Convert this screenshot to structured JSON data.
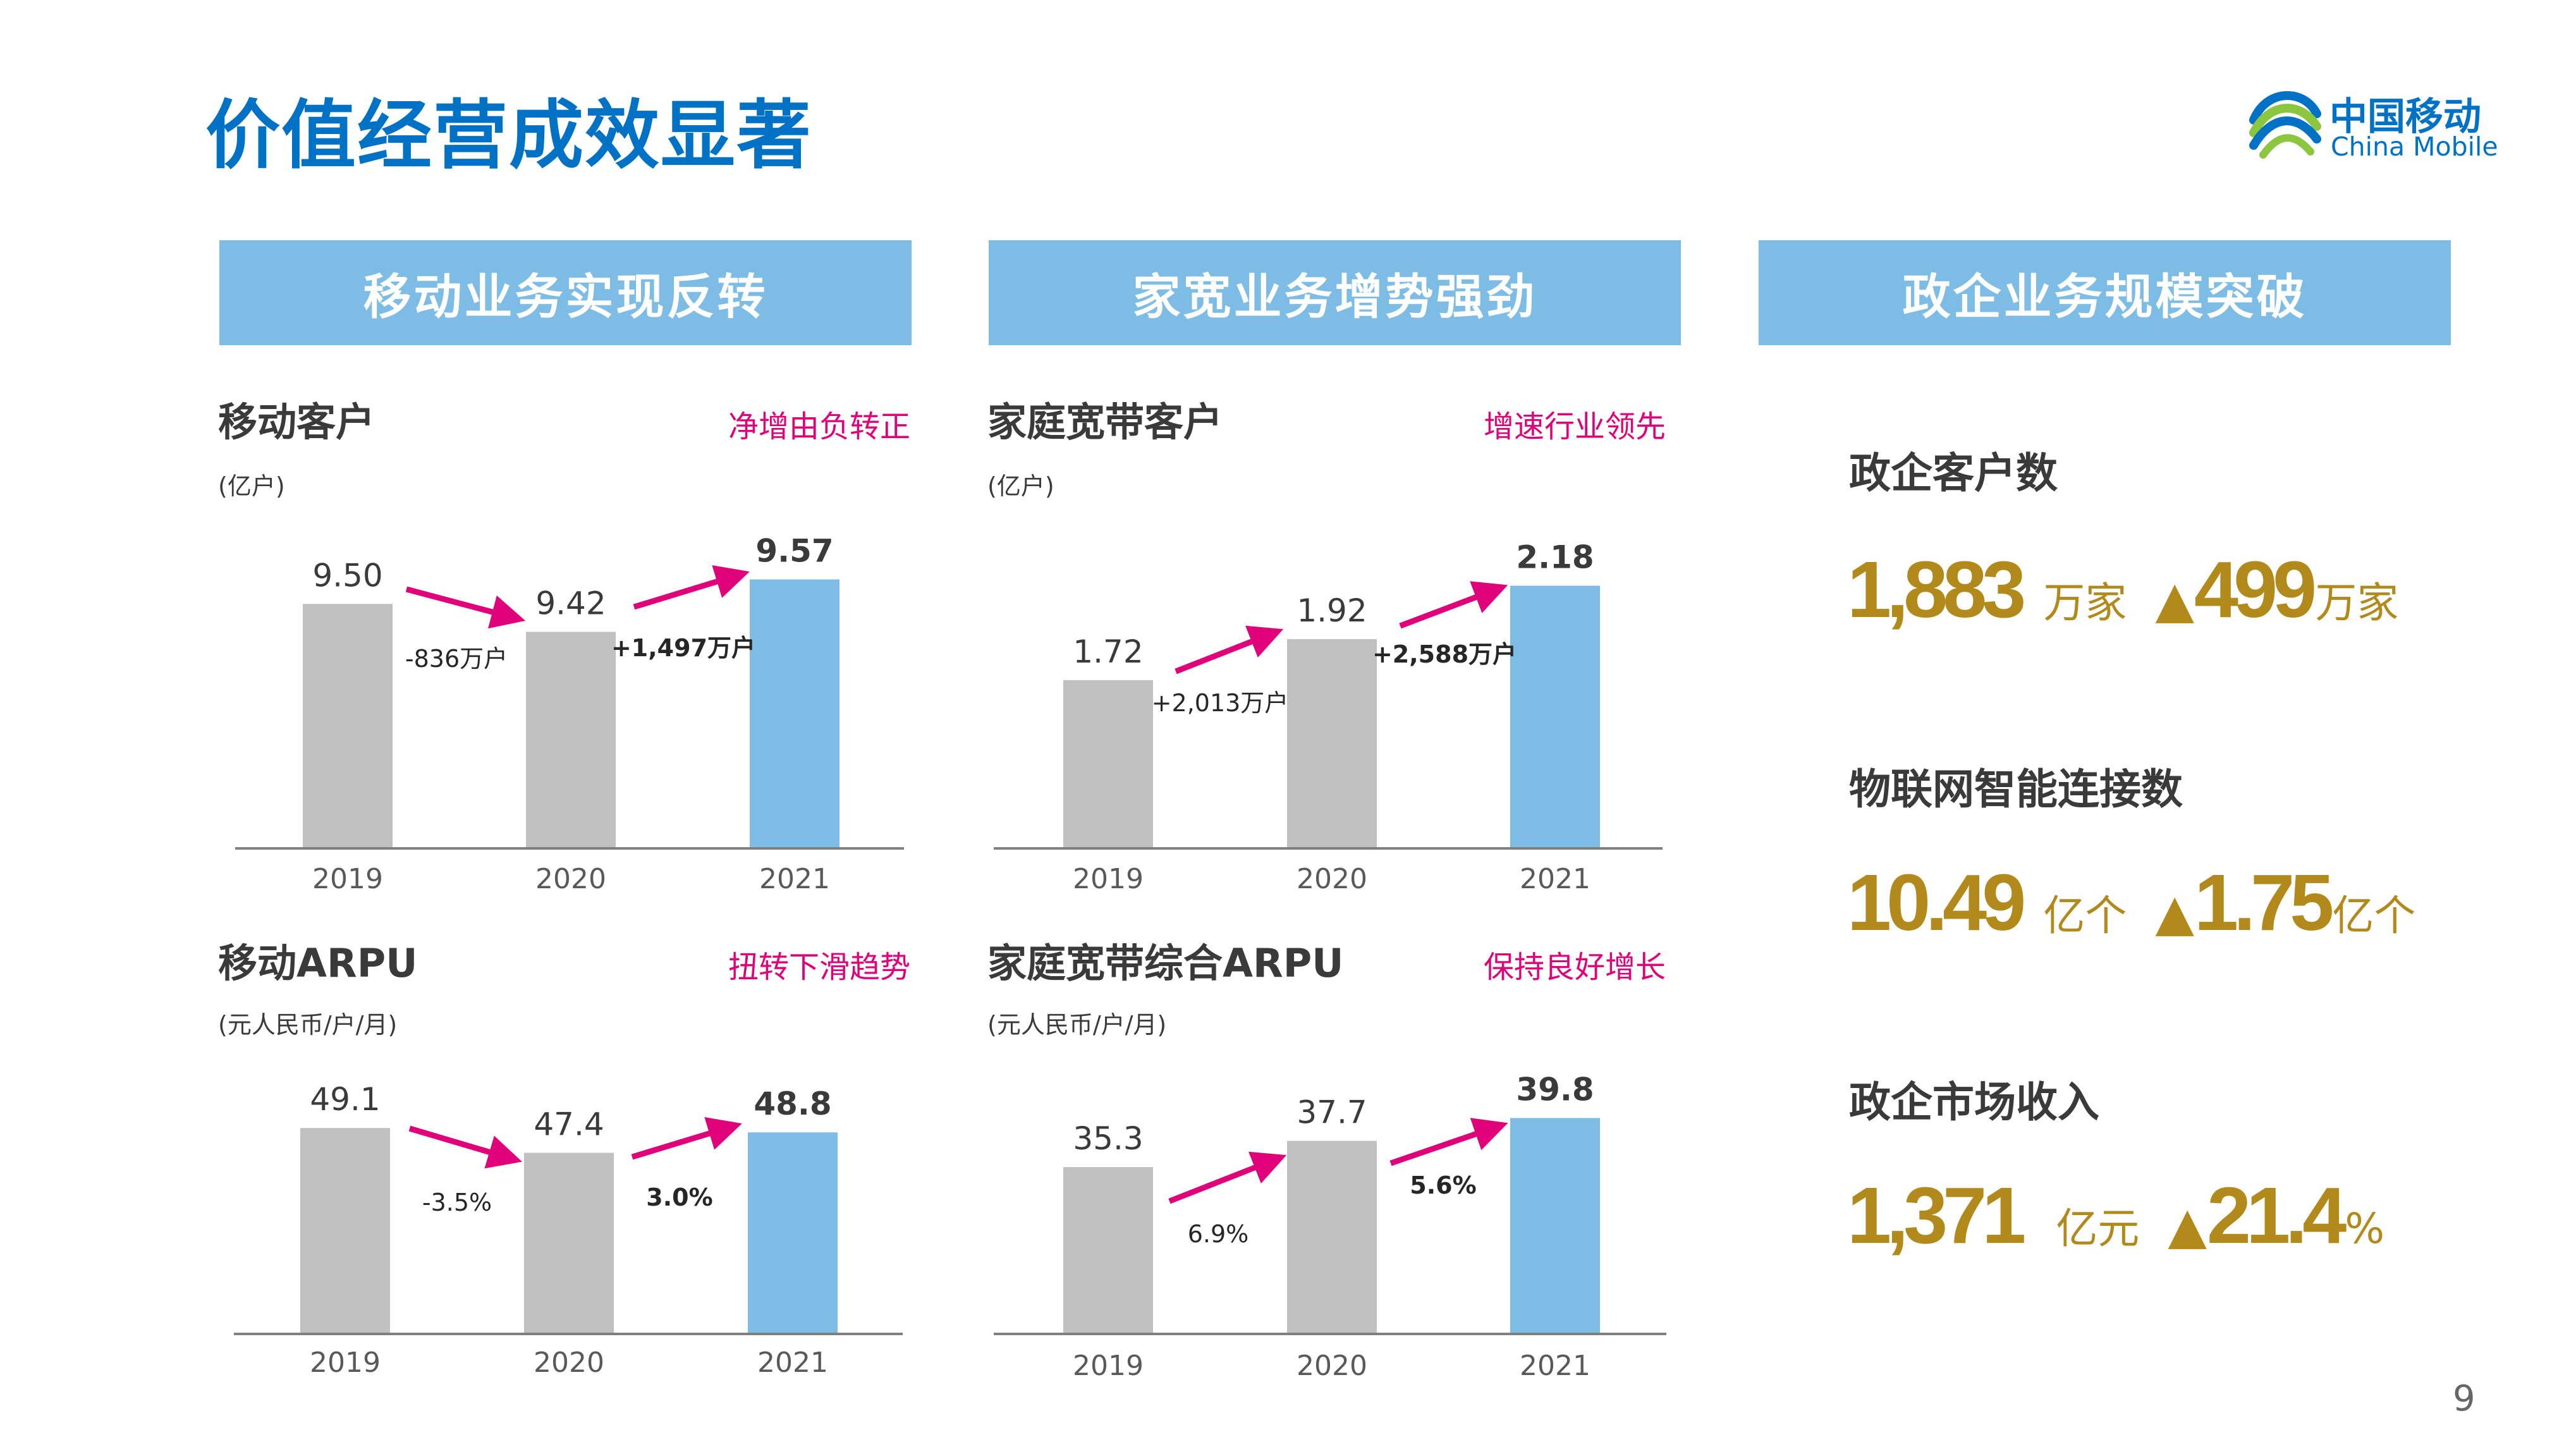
{
  "page": {
    "title": "价值经营成效显著",
    "number": "9"
  },
  "logo": {
    "cn": "中国移动",
    "en": "China Mobile"
  },
  "headers": [
    "移动业务实现反转",
    "家宽业务增势强劲",
    "政企业务规模突破"
  ],
  "colors": {
    "title": "#0072c6",
    "header_bg": "#7dbce4",
    "bar_gray": "#c0c0c0",
    "bar_blue": "#7dbce4",
    "arrow": "#e0007a",
    "note": "#e0007a",
    "gold": "#b28a1b"
  },
  "panels": [
    {
      "title": "移动客户",
      "unit": "(亿户)",
      "note": "净增由负转正",
      "value_labels": [
        "9.50",
        "9.42",
        "9.57"
      ],
      "change_labels": [
        "-836万户",
        "+1,497万户"
      ]
    },
    {
      "title": "家庭宽带客户",
      "unit": "(亿户)",
      "note": "增速行业领先",
      "value_labels": [
        "1.72",
        "1.92",
        "2.18"
      ],
      "change_labels": [
        "+2,013万户",
        "+2,588万户"
      ]
    },
    {
      "title": "移动ARPU",
      "unit": "(元人民币/户/月)",
      "note": "扭转下滑趋势",
      "value_labels": [
        "49.1",
        "47.4",
        "48.8"
      ],
      "change_labels": [
        "-3.5%",
        "3.0%"
      ]
    },
    {
      "title": "家庭宽带综合ARPU",
      "unit": "(元人民币/户/月)",
      "note": "保持良好增长",
      "value_labels": [
        "35.3",
        "37.7",
        "39.8"
      ],
      "change_labels": [
        "6.9%",
        "5.6%"
      ]
    }
  ],
  "chart_data": [
    {
      "type": "bar",
      "title": "移动客户",
      "categories": [
        "2019",
        "2020",
        "2021"
      ],
      "values": [
        9.5,
        9.42,
        9.57
      ],
      "ylim": [
        8.8,
        9.6
      ]
    },
    {
      "type": "bar",
      "title": "家庭宽带客户",
      "categories": [
        "2019",
        "2020",
        "2021"
      ],
      "values": [
        1.72,
        1.92,
        2.18
      ],
      "ylim": [
        0.9,
        2.2
      ]
    },
    {
      "type": "bar",
      "title": "移动ARPU",
      "categories": [
        "2019",
        "2020",
        "2021"
      ],
      "values": [
        49.1,
        47.4,
        48.8
      ],
      "ylim": [
        35,
        49.5
      ]
    },
    {
      "type": "bar",
      "title": "家庭宽带综合ARPU",
      "categories": [
        "2019",
        "2020",
        "2021"
      ],
      "values": [
        35.3,
        37.7,
        39.8
      ],
      "ylim": [
        20,
        40
      ]
    }
  ],
  "right_stats": [
    {
      "label": "政企客户数",
      "value": "1,883",
      "unit": "万家",
      "triangle": "▲",
      "delta": "499",
      "delta_unit": "万家"
    },
    {
      "label": "物联网智能连接数",
      "value": "10.49",
      "unit": "亿个",
      "triangle": "▲",
      "delta": "1.75",
      "delta_unit": "亿个"
    },
    {
      "label": "政企市场收入",
      "value": "1,371",
      "unit": "亿元",
      "triangle": "▲",
      "delta": "21.4",
      "delta_unit": "%"
    }
  ]
}
